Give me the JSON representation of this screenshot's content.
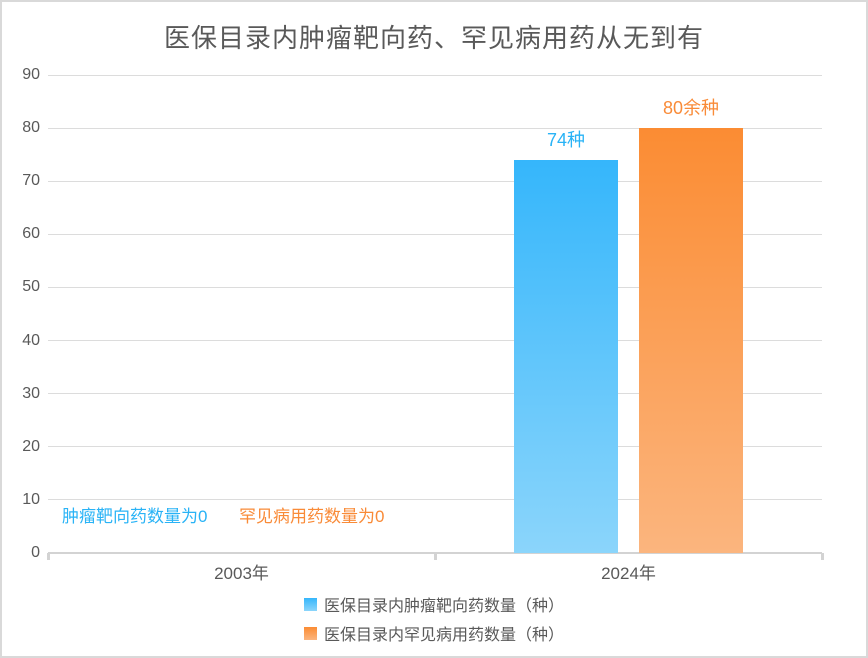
{
  "page": {
    "background": "#FFFFFF",
    "border_color": "#D9D9D9"
  },
  "chart_data": {
    "type": "bar",
    "title": "医保目录内肿瘤靶向药、罕见病用药从无到有",
    "title_color": "#595959",
    "categories": [
      "2003年",
      "2024年"
    ],
    "series": [
      {
        "name": "医保目录内肿瘤靶向药数量（种）",
        "values": [
          0,
          74
        ],
        "bar_labels": [
          "",
          "74种"
        ],
        "zero_annotation": "肿瘤靶向药数量为0",
        "color_top": "#35B6FB",
        "color_bottom": "#8BD5FB",
        "label_color": "#29B3F6"
      },
      {
        "name": "医保目录内罕见病用药数量（种）",
        "values": [
          0,
          80
        ],
        "bar_labels": [
          "",
          "80余种"
        ],
        "zero_annotation": "罕见病用药数量为0",
        "color_top": "#FB8C33",
        "color_bottom": "#FBB57E",
        "label_color": "#F98B38"
      }
    ],
    "ylim": [
      0,
      90
    ],
    "yticks": [
      0,
      10,
      20,
      30,
      40,
      50,
      60,
      70,
      80,
      90
    ],
    "axis_text_color": "#595959",
    "gridline_color": "#DCDCDC",
    "axis_line_color": "#D3D3D3",
    "grid": true,
    "legend_position": "bottom"
  }
}
